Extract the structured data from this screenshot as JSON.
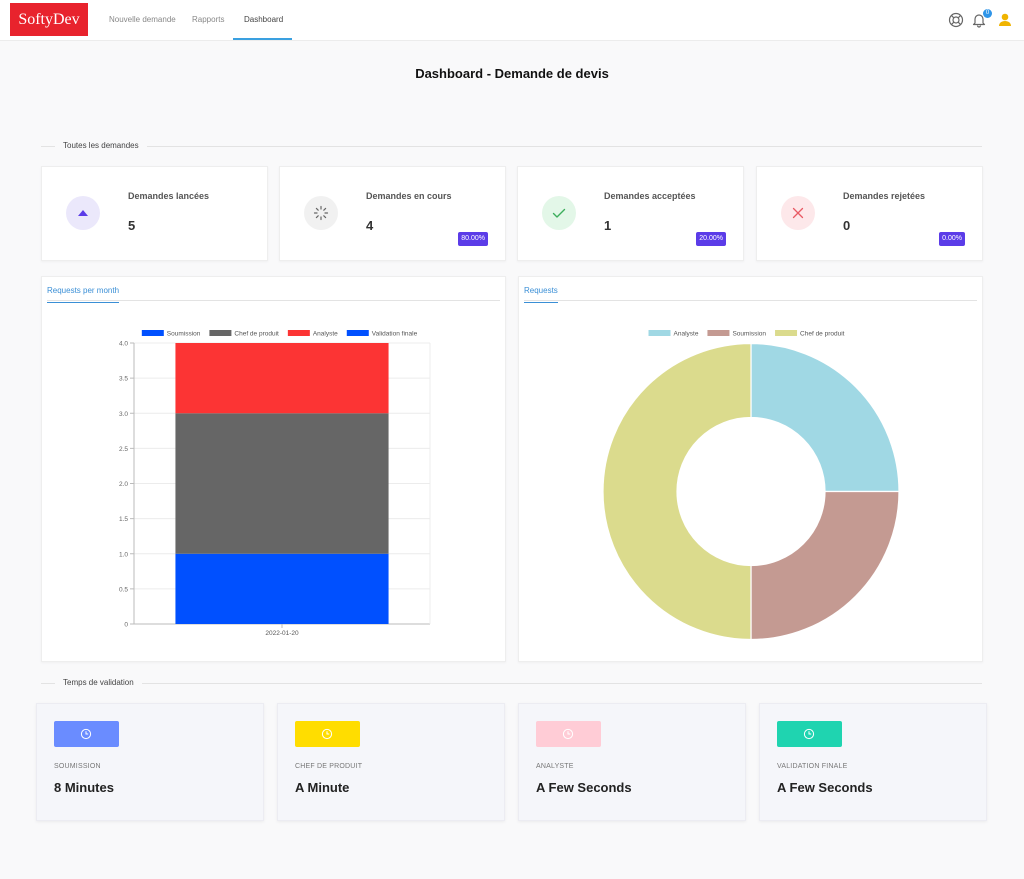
{
  "app": {
    "logo": "SoftyDev"
  },
  "nav": {
    "items": [
      {
        "label": "Nouvelle demande"
      },
      {
        "label": "Rapports"
      },
      {
        "label": "Dashboard"
      }
    ],
    "notification_count": "0",
    "icons": [
      "support-icon",
      "bell-icon",
      "user-icon"
    ]
  },
  "page": {
    "title": "Dashboard - Demande de devis"
  },
  "sections": {
    "all_requests": "Toutes les demandes",
    "validation_time": "Temps de validation"
  },
  "stats": [
    {
      "title": "Demandes lancées",
      "value": "5",
      "badge": "",
      "icon": "triangle-up-icon",
      "color": "#5b3ce8",
      "bg": "#ebe8fb"
    },
    {
      "title": "Demandes en cours",
      "value": "4",
      "badge": "80.00%",
      "icon": "spinner-icon",
      "color": "#666666",
      "bg": "#f1f1f1"
    },
    {
      "title": "Demandes acceptées",
      "value": "1",
      "badge": "20.00%",
      "icon": "check-icon",
      "color": "#3cae5c",
      "bg": "#e3f7e8"
    },
    {
      "title": "Demandes rejetées",
      "value": "0",
      "badge": "0.00%",
      "icon": "close-icon",
      "color": "#e85a64",
      "bg": "#fde8ea"
    }
  ],
  "panels": {
    "bar_tab": "Requests per month",
    "pie_tab": "Requests"
  },
  "chart_data": [
    {
      "type": "bar",
      "stacked": true,
      "categories": [
        "2022-01-20"
      ],
      "series": [
        {
          "name": "Soumission",
          "values": [
            1
          ],
          "color": "#0050ff"
        },
        {
          "name": "Chef de produit",
          "values": [
            2
          ],
          "color": "#666666"
        },
        {
          "name": "Analyste",
          "values": [
            1
          ],
          "color": "#fc3434"
        },
        {
          "name": "Validation finale",
          "values": [
            0
          ],
          "color": "#0050ff"
        }
      ],
      "yticks": [
        "0",
        "0.5",
        "1.0",
        "1.5",
        "2.0",
        "2.5",
        "3.0",
        "3.5",
        "4.0"
      ],
      "ylim": [
        0,
        4
      ],
      "legend": "top",
      "grid": true
    },
    {
      "type": "pie",
      "donut": true,
      "slices": [
        {
          "name": "Analyste",
          "value": 1,
          "color": "#a0d8e4"
        },
        {
          "name": "Soumission",
          "value": 1,
          "color": "#c49a92"
        },
        {
          "name": "Chef de produit",
          "value": 2,
          "color": "#dbdb8d"
        }
      ],
      "legend": "top"
    }
  ],
  "validation_times": [
    {
      "label": "SOUMISSION",
      "value": "8 Minutes",
      "color": "#6a8cff"
    },
    {
      "label": "CHEF DE PRODUIT",
      "value": "A Minute",
      "color": "#ffdd00"
    },
    {
      "label": "ANALYSTE",
      "value": "A Few Seconds",
      "color": "#ffccd6"
    },
    {
      "label": "VALIDATION FINALE",
      "value": "A Few Seconds",
      "color": "#1fd4b0"
    }
  ]
}
